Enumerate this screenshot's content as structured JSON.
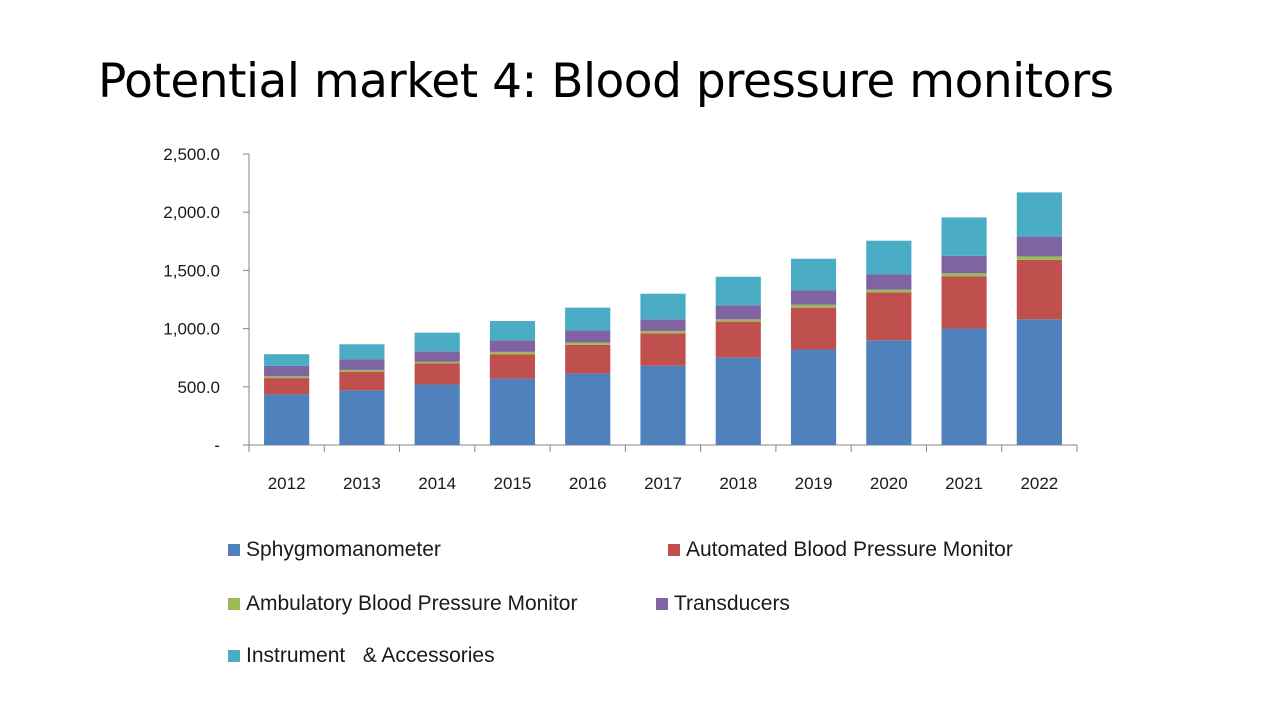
{
  "slide": {
    "title": "Potential market 4: Blood pressure monitors"
  },
  "chart_data": {
    "type": "bar",
    "stacked": true,
    "categories": [
      "2012",
      "2013",
      "2014",
      "2015",
      "2016",
      "2017",
      "2018",
      "2019",
      "2020",
      "2021",
      "2022"
    ],
    "ylim": [
      0,
      2500
    ],
    "yticks": [
      0,
      500,
      1000,
      1500,
      2000,
      2500
    ],
    "ytick_labels": [
      "-",
      "500.0",
      "1,000.0",
      "1,500.0",
      "2,000.0",
      "2,500.0"
    ],
    "grid": false,
    "legend_position": "bottom",
    "series": [
      {
        "name": "Sphygmomanometer",
        "color": "#4f81bd",
        "values": [
          435,
          470,
          520,
          570,
          615,
          680,
          750,
          820,
          900,
          1000,
          1080
        ]
      },
      {
        "name": "Automated Blood Pressure Monitor",
        "color": "#c0504d",
        "values": [
          140,
          160,
          180,
          210,
          245,
          280,
          310,
          360,
          410,
          450,
          510
        ]
      },
      {
        "name": "Ambulatory Blood Pressure Monitor",
        "color": "#9bbb59",
        "values": [
          15,
          15,
          15,
          20,
          20,
          20,
          20,
          25,
          25,
          25,
          30
        ]
      },
      {
        "name": "Transducers",
        "color": "#8064a2",
        "values": [
          90,
          90,
          90,
          100,
          105,
          100,
          120,
          125,
          130,
          150,
          170
        ]
      },
      {
        "name": "Instrument   & Accessories",
        "color": "#4bacc6",
        "values": [
          100,
          130,
          160,
          165,
          195,
          220,
          245,
          270,
          290,
          330,
          380
        ]
      }
    ]
  }
}
